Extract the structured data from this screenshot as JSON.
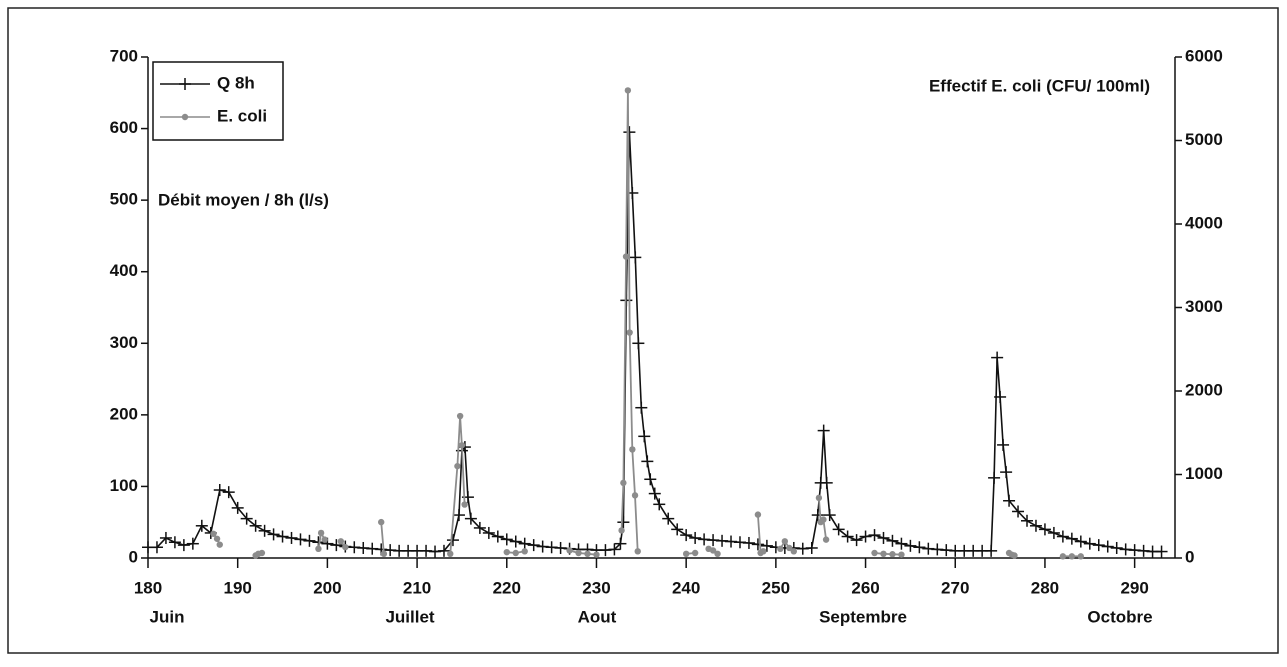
{
  "chart_data": {
    "type": "line",
    "ylabel": "Débit moyen / 8h (l/s)",
    "y2label": "Effectif E. coli (CFU/ 100ml)",
    "month_labels": [
      "Juin",
      "Juillet",
      "Aout",
      "Septembre",
      "Octobre"
    ],
    "xlim": [
      180,
      294.5
    ],
    "xticks": [
      180,
      190,
      200,
      210,
      220,
      230,
      240,
      250,
      260,
      270,
      280,
      290
    ],
    "ylim": [
      0,
      700
    ],
    "yticks": [
      0,
      100,
      200,
      300,
      400,
      500,
      600,
      700
    ],
    "y2lim": [
      0,
      6000
    ],
    "y2ticks": [
      0,
      1000,
      2000,
      3000,
      4000,
      5000,
      6000
    ],
    "legend": "top-left",
    "series": [
      {
        "name": "Q 8h",
        "color": "#111111",
        "marker": "plus",
        "x": [
          180,
          181,
          182,
          183,
          184,
          185,
          186,
          187,
          188,
          189,
          190,
          191,
          192,
          193,
          194,
          195,
          196,
          197,
          198,
          199,
          200,
          201,
          202,
          203,
          204,
          205,
          206,
          207,
          208,
          209,
          210,
          211,
          212,
          213,
          214,
          214.67,
          215,
          215.33,
          215.67,
          216,
          217,
          218,
          219,
          220,
          221,
          222,
          223,
          224,
          225,
          226,
          227,
          228,
          229,
          230,
          231,
          232,
          232.67,
          233,
          233.33,
          233.67,
          234,
          234.33,
          234.67,
          235,
          235.33,
          235.67,
          236,
          236.5,
          237,
          238,
          239,
          240,
          241,
          242,
          243,
          244,
          245,
          246,
          247,
          248,
          249,
          250,
          251,
          252,
          253,
          254,
          254.67,
          255,
          255.33,
          255.67,
          256,
          257,
          258,
          259,
          260,
          261,
          262,
          263,
          264,
          265,
          266,
          267,
          268,
          269,
          270,
          271,
          272,
          273,
          274,
          274.33,
          274.67,
          275,
          275.33,
          275.67,
          276,
          277,
          278,
          279,
          280,
          281,
          282,
          283,
          284,
          285,
          286,
          287,
          288,
          289,
          290,
          291,
          292,
          293
        ],
        "values": [
          15,
          15,
          28,
          22,
          18,
          20,
          45,
          35,
          95,
          92,
          70,
          55,
          45,
          38,
          33,
          30,
          28,
          26,
          24,
          22,
          20,
          18,
          16,
          15,
          14,
          13,
          12,
          11,
          10,
          10,
          10,
          10,
          9,
          10,
          25,
          60,
          150,
          155,
          85,
          55,
          42,
          35,
          30,
          26,
          23,
          20,
          18,
          16,
          15,
          14,
          13,
          12,
          12,
          11,
          11,
          12,
          20,
          50,
          360,
          595,
          510,
          420,
          300,
          210,
          170,
          135,
          110,
          90,
          75,
          55,
          40,
          32,
          28,
          26,
          25,
          24,
          23,
          22,
          21,
          19,
          17,
          15,
          14,
          14,
          13,
          14,
          60,
          105,
          178,
          105,
          60,
          40,
          30,
          25,
          30,
          32,
          28,
          24,
          20,
          17,
          15,
          13,
          12,
          11,
          10,
          10,
          10,
          10,
          10,
          112,
          280,
          225,
          158,
          120,
          80,
          65,
          52,
          45,
          40,
          35,
          30,
          27,
          23,
          20,
          18,
          16,
          14,
          12,
          11,
          10,
          9,
          9
        ]
      },
      {
        "name": "E. coli",
        "color": "#8c8c8c",
        "marker": "dot",
        "axis": "y2",
        "x": [
          187.3,
          187.7,
          188,
          null,
          192,
          192.3,
          192.7,
          null,
          199,
          199.3,
          199.7,
          null,
          201.5,
          202,
          null,
          206,
          206.3,
          null,
          213.7,
          214.5,
          214.8,
          215,
          215.3,
          null,
          220,
          221,
          222,
          null,
          227,
          228,
          229,
          230,
          null,
          232.8,
          233,
          233.3,
          233.5,
          233.7,
          234,
          234.3,
          234.6,
          null,
          240,
          241,
          null,
          242.5,
          243,
          243.5,
          null,
          248,
          248.3,
          248.6,
          null,
          250.5,
          251,
          251.5,
          252,
          null,
          254.8,
          255,
          255.3,
          255.6,
          null,
          261,
          262,
          263,
          264,
          null,
          276,
          276.3,
          276.6,
          null,
          282,
          283,
          284
        ],
        "values": [
          290,
          230,
          160,
          null,
          30,
          50,
          60,
          null,
          110,
          300,
          220,
          null,
          200,
          130,
          null,
          430,
          50,
          null,
          50,
          1100,
          1700,
          1350,
          640,
          null,
          70,
          60,
          80,
          null,
          90,
          60,
          50,
          40,
          null,
          330,
          900,
          3610,
          5600,
          2700,
          1300,
          750,
          80,
          null,
          50,
          60,
          null,
          110,
          90,
          50,
          null,
          520,
          60,
          80,
          null,
          110,
          200,
          120,
          80,
          null,
          720,
          430,
          460,
          220,
          null,
          60,
          50,
          45,
          40,
          null,
          60,
          40,
          30,
          null,
          20,
          20,
          20
        ]
      }
    ]
  }
}
